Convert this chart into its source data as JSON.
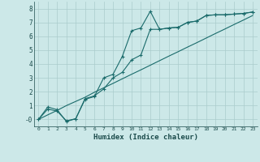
{
  "xlabel": "Humidex (Indice chaleur)",
  "bg_color": "#cce8e8",
  "grid_color": "#aacccc",
  "line_color": "#1a6b6b",
  "xlim": [
    -0.5,
    23.5
  ],
  "ylim": [
    -0.5,
    8.5
  ],
  "xticks": [
    0,
    1,
    2,
    3,
    4,
    5,
    6,
    7,
    8,
    9,
    10,
    11,
    12,
    13,
    14,
    15,
    16,
    17,
    18,
    19,
    20,
    21,
    22,
    23
  ],
  "yticks": [
    0,
    1,
    2,
    3,
    4,
    5,
    6,
    7,
    8
  ],
  "line1_x": [
    0,
    1,
    2,
    3,
    4,
    5,
    6,
    7,
    8,
    9,
    10,
    11,
    12,
    13,
    14,
    15,
    16,
    17,
    18,
    19,
    20,
    21,
    22,
    23
  ],
  "line1_y": [
    0.0,
    0.33,
    0.65,
    1.0,
    1.3,
    1.6,
    1.96,
    2.28,
    2.6,
    2.93,
    3.26,
    3.58,
    3.91,
    4.24,
    4.57,
    4.89,
    5.22,
    5.54,
    5.87,
    6.2,
    6.52,
    6.85,
    7.17,
    7.5
  ],
  "line2_x": [
    0,
    1,
    2,
    3,
    4,
    5,
    6,
    7,
    8,
    9,
    10,
    11,
    12,
    13,
    14,
    15,
    16,
    17,
    18,
    19,
    20,
    21,
    22,
    23
  ],
  "line2_y": [
    0.0,
    0.75,
    0.6,
    -0.1,
    0.05,
    1.5,
    1.7,
    2.2,
    3.0,
    3.4,
    4.3,
    4.65,
    6.5,
    6.5,
    6.6,
    6.65,
    7.0,
    7.1,
    7.5,
    7.55,
    7.55,
    7.6,
    7.65,
    7.75
  ],
  "line3_x": [
    0,
    1,
    2,
    3,
    4,
    5,
    6,
    7,
    8,
    9,
    10,
    11,
    12,
    13,
    14,
    15,
    16,
    17,
    18,
    19,
    20,
    21,
    22,
    23
  ],
  "line3_y": [
    0.0,
    0.9,
    0.7,
    -0.15,
    0.05,
    1.45,
    1.65,
    3.0,
    3.25,
    4.55,
    6.4,
    6.6,
    7.8,
    6.5,
    6.6,
    6.65,
    7.0,
    7.1,
    7.5,
    7.55,
    7.55,
    7.6,
    7.65,
    7.75
  ]
}
